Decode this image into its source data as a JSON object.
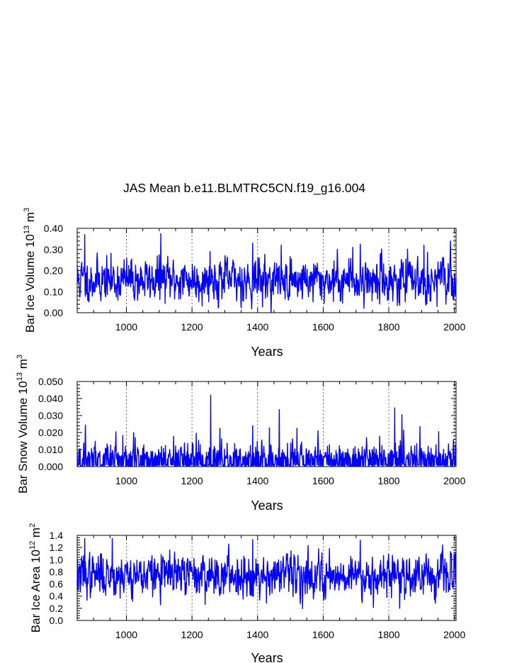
{
  "chart_data": [
    {
      "type": "line",
      "title": "JAS Mean b.e11.BLMTRC5CN.f19_g16.004",
      "ylabel_main": "Bar Ice Volume 10",
      "ylabel_exp1": "13",
      "ylabel_unit": " m",
      "ylabel_exp2": "3",
      "xlabel": "Years",
      "xlim": [
        850,
        2005
      ],
      "ylim": [
        0.0,
        0.4
      ],
      "xticks": [
        1000,
        1200,
        1400,
        1600,
        1800,
        2000
      ],
      "yticks": [
        0.0,
        0.1,
        0.2,
        0.3,
        0.4
      ],
      "ytick_labels": [
        "0.00",
        "0.10",
        "0.20",
        "0.30",
        "0.40"
      ],
      "series": [
        {
          "name": "Bar Ice Volume",
          "color": "#0000ff",
          "mean": 0.155,
          "sd": 0.05,
          "kind": "ice",
          "seed": 11,
          "x_start": 850,
          "x_end": 2005,
          "peaks": [
            [
              873,
              0.37
            ],
            [
              1105,
              0.375
            ],
            [
              1255,
              0.29
            ],
            [
              1385,
              0.33
            ],
            [
              1472,
              0.32
            ],
            [
              1690,
              0.31
            ],
            [
              1713,
              0.325
            ],
            [
              1907,
              0.32
            ],
            [
              1833,
              0.035
            ]
          ]
        }
      ],
      "grid": "dashed vertical lines at major x ticks"
    },
    {
      "type": "line",
      "ylabel_main": "Bar Snow Volume 10",
      "ylabel_exp1": "13",
      "ylabel_unit": " m",
      "ylabel_exp2": "3",
      "xlabel": "Years",
      "xlim": [
        850,
        2005
      ],
      "ylim": [
        0.0,
        0.05
      ],
      "xticks": [
        1000,
        1200,
        1400,
        1600,
        1800,
        2000
      ],
      "yticks": [
        0.0,
        0.01,
        0.02,
        0.03,
        0.04,
        0.05
      ],
      "ytick_labels": [
        "0.000",
        "0.010",
        "0.020",
        "0.030",
        "0.040",
        "0.050"
      ],
      "series": [
        {
          "name": "Bar Snow Volume",
          "color": "#0000ff",
          "mean": 0.004,
          "sd": 0.004,
          "kind": "snow",
          "seed": 23,
          "x_start": 850,
          "x_end": 2005,
          "peaks": [
            [
              1257,
              0.042
            ],
            [
              1466,
              0.0335
            ],
            [
              1818,
              0.0345
            ],
            [
              1840,
              0.0305
            ],
            [
              1895,
              0.0235
            ],
            [
              1285,
              0.0225
            ],
            [
              1385,
              0.024
            ],
            [
              1520,
              0.0225
            ]
          ]
        }
      ],
      "grid": "dashed vertical lines at major x ticks"
    },
    {
      "type": "line",
      "ylabel_main": "Bar Ice Area 10",
      "ylabel_exp1": "12",
      "ylabel_unit": " m",
      "ylabel_exp2": "2",
      "xlabel": "Years",
      "xlim": [
        850,
        2005
      ],
      "ylim": [
        0.0,
        1.4
      ],
      "xticks": [
        1000,
        1200,
        1400,
        1600,
        1800,
        2000
      ],
      "yticks": [
        0.0,
        0.2,
        0.4,
        0.6,
        0.8,
        1.0,
        1.2,
        1.4
      ],
      "ytick_labels": [
        "0.0",
        "0.2",
        "0.4",
        "0.6",
        "0.8",
        "1.0",
        "1.2",
        "1.4"
      ],
      "series": [
        {
          "name": "Bar Ice Area",
          "color": "#0000ff",
          "mean": 0.75,
          "sd": 0.17,
          "kind": "area",
          "seed": 37,
          "x_start": 850,
          "x_end": 2005,
          "peaks": [
            [
              873,
              1.35
            ],
            [
              957,
              1.35
            ],
            [
              1385,
              1.33
            ],
            [
              1713,
              1.32
            ],
            [
              1833,
              0.2
            ]
          ]
        }
      ],
      "grid": "dashed vertical lines at major x ticks"
    }
  ]
}
